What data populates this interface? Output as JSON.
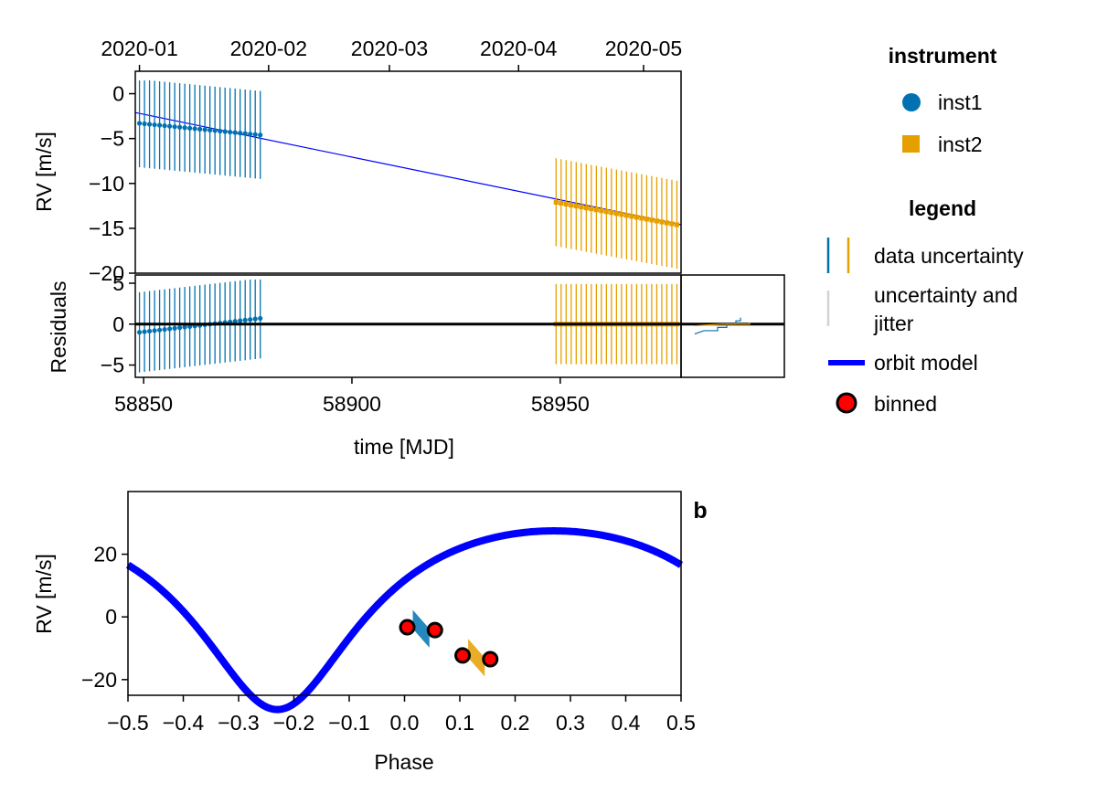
{
  "colors": {
    "inst1": "#0072b2",
    "inst2": "#e69f00",
    "model_top": "#0000ff",
    "model_phase": "#0000ff",
    "binned_fill": "#ff0000",
    "jitter": "#d3d3d3",
    "zero_line": "#000000"
  },
  "panel_label_b": "b",
  "legend": {
    "instrument_title": "instrument",
    "instruments": [
      {
        "label": "inst1",
        "icon": "circle-marker-icon"
      },
      {
        "label": "inst2",
        "icon": "square-marker-icon"
      }
    ],
    "legend_title": "legend",
    "items": [
      {
        "label": "data uncertainty",
        "icon": "errorbar-icon"
      },
      {
        "label_lines": [
          "uncertainty and",
          "jitter"
        ],
        "icon": "jitter-bar-icon"
      },
      {
        "label": "orbit model",
        "icon": "line-icon"
      },
      {
        "label": "binned",
        "icon": "red-circle-icon"
      }
    ]
  },
  "chart_data": [
    {
      "id": "rv_time",
      "type": "scatter",
      "ylabel": "RV [m/s]",
      "xlim": [
        58848,
        58979
      ],
      "ylim": [
        -20,
        2.5
      ],
      "yticks": [
        0,
        -5,
        -10,
        -15,
        -20
      ],
      "top_axis_ticks": [
        {
          "label": "2020-01",
          "mjd": 58849
        },
        {
          "label": "2020-02",
          "mjd": 58880
        },
        {
          "label": "2020-03",
          "mjd": 58909
        },
        {
          "label": "2020-04",
          "mjd": 58940
        },
        {
          "label": "2020-05",
          "mjd": 58970
        }
      ],
      "series": [
        {
          "name": "inst1",
          "marker": "circle",
          "x_start": 58849,
          "x_end": 58878,
          "n_points": 25,
          "y_start": -3.3,
          "y_end": -4.6,
          "err": 4.9
        },
        {
          "name": "inst2",
          "marker": "square",
          "x_start": 58949,
          "x_end": 58978,
          "n_points": 25,
          "y_start": -12.1,
          "y_end": -14.6,
          "err": 4.9
        }
      ],
      "model_line": {
        "x": [
          58848,
          58979
        ],
        "y": [
          -2.1,
          -14.6
        ]
      }
    },
    {
      "id": "residuals",
      "type": "scatter",
      "ylabel": "Residuals",
      "xlabel": "time [MJD]",
      "xlim": [
        58848,
        58979
      ],
      "ylim": [
        -6.5,
        6
      ],
      "yticks": [
        5,
        0,
        -5
      ],
      "xticks": [
        58850,
        58900,
        58950
      ],
      "series": [
        {
          "name": "inst1",
          "marker": "circle",
          "x_start": 58849,
          "x_end": 58878,
          "n_points": 25,
          "y_start": -1.0,
          "y_end": 0.7,
          "err": 4.9
        },
        {
          "name": "inst2",
          "marker": "square",
          "x_start": 58949,
          "x_end": 58978,
          "n_points": 25,
          "y_start": 0.0,
          "y_end": 0.0,
          "err": 4.9
        }
      ],
      "zero_line": 0,
      "histogram_inset": {
        "inst1_steps": [
          [
            -1.2,
            -0.8
          ],
          [
            -0.8,
            -0.4
          ],
          [
            -0.4,
            0.0
          ],
          [
            0.0,
            0.4
          ],
          [
            0.4,
            0.8
          ]
        ],
        "inst1_counts": [
          2,
          5,
          7,
          9,
          10
        ],
        "inst2_steps": [
          [
            -0.2,
            0.0
          ],
          [
            0.0,
            0.2
          ]
        ],
        "inst2_counts": [
          6,
          12
        ]
      }
    },
    {
      "id": "phase_fold",
      "type": "line",
      "ylabel": "RV [m/s]",
      "xlabel": "Phase",
      "xlim": [
        -0.5,
        0.5
      ],
      "ylim": [
        -25,
        40
      ],
      "yticks": [
        20,
        0,
        -20
      ],
      "xticks": [
        -0.5,
        -0.4,
        -0.3,
        -0.2,
        -0.1,
        0.0,
        0.1,
        0.2,
        0.3,
        0.4,
        0.5
      ],
      "xtick_labels": [
        "−0.5",
        "−0.4",
        "−0.3",
        "−0.2",
        "−0.1",
        "0.0",
        "0.1",
        "0.2",
        "0.3",
        "0.4",
        "0.5"
      ],
      "model": {
        "K": 28.5,
        "e": 0.3,
        "omega_deg": 180,
        "tp_phase": -0.23,
        "offset": 7.5
      },
      "binned": [
        {
          "x": 0.005,
          "y": -3.3
        },
        {
          "x": 0.055,
          "y": -4.2
        },
        {
          "x": 0.105,
          "y": -12.3
        },
        {
          "x": 0.155,
          "y": -13.5
        }
      ],
      "data_bands": [
        {
          "name": "inst1",
          "x_from": 0.015,
          "x_to": 0.045,
          "y_from": -0.8,
          "y_to": -6.8
        },
        {
          "name": "inst2",
          "x_from": 0.115,
          "x_to": 0.145,
          "y_from": -10.0,
          "y_to": -16.0
        }
      ]
    }
  ]
}
